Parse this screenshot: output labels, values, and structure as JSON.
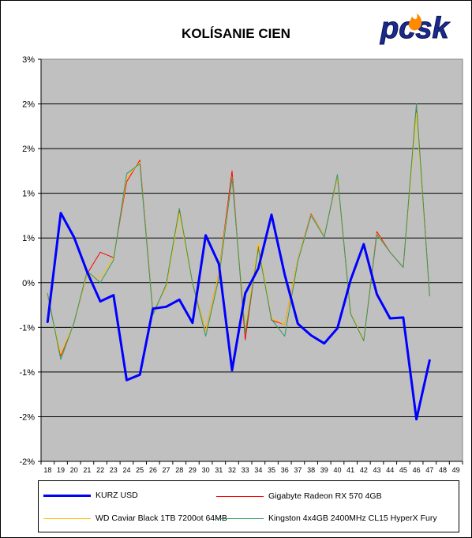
{
  "chart_data": {
    "type": "line",
    "title": "KOLÍSANIE CIEN",
    "logo_text": "pcsk",
    "x": [
      18,
      19,
      20,
      21,
      22,
      23,
      24,
      25,
      26,
      27,
      28,
      29,
      30,
      31,
      32,
      33,
      34,
      35,
      36,
      37,
      38,
      39,
      40,
      41,
      42,
      43,
      44,
      45,
      46,
      47,
      48,
      49
    ],
    "y_tick_labels": [
      "3%",
      "2%",
      "2%",
      "1%",
      "1%",
      "0%",
      "-1%",
      "-1%",
      "-2%",
      "-2%"
    ],
    "ylim": [
      -2.0,
      2.5
    ],
    "grid": "horizontal",
    "legend_position": "bottom",
    "series": [
      {
        "name": "KURZ USD",
        "color": "#0000ff",
        "width": 3,
        "values": [
          -0.44,
          0.78,
          0.51,
          0.12,
          -0.21,
          -0.14,
          -1.09,
          -1.03,
          -0.29,
          -0.27,
          -0.19,
          -0.45,
          0.53,
          0.21,
          -0.98,
          -0.12,
          0.16,
          0.76,
          0.09,
          -0.46,
          -0.59,
          -0.68,
          -0.51,
          0.03,
          0.43,
          -0.13,
          -0.4,
          -0.39,
          -1.53,
          -0.87,
          null,
          null
        ]
      },
      {
        "name": "Gigabyte Radeon RX 570 4GB",
        "color": "#ff0000",
        "width": 1,
        "values": [
          -0.15,
          -0.82,
          -0.45,
          0.1,
          0.34,
          0.28,
          1.13,
          1.37,
          -0.33,
          -0.05,
          0.81,
          -0.01,
          -0.54,
          0.11,
          1.25,
          -0.64,
          0.42,
          -0.42,
          -0.47,
          0.26,
          0.77,
          0.52,
          1.18,
          -0.34,
          -0.65,
          0.57,
          0.34,
          0.17,
          1.98,
          -0.14,
          null,
          null
        ]
      },
      {
        "name": "WD Caviar Black 1TB 7200ot 64MB",
        "color": "#ffc000",
        "width": 1,
        "values": [
          -0.15,
          -0.8,
          -0.45,
          0.1,
          0.05,
          0.28,
          1.17,
          1.35,
          -0.33,
          -0.05,
          0.78,
          -0.01,
          -0.54,
          0.11,
          1.18,
          -0.53,
          0.44,
          -0.4,
          -0.47,
          0.26,
          0.76,
          0.52,
          1.18,
          -0.34,
          -0.64,
          0.55,
          0.34,
          0.17,
          1.9,
          -0.14,
          null,
          null
        ]
      },
      {
        "name": "Kingston 4x4GB 2400MHz CL15 HyperX Fury",
        "color": "#339966",
        "width": 1,
        "values": [
          -0.12,
          -0.86,
          -0.45,
          0.13,
          0.0,
          0.25,
          1.22,
          1.33,
          -0.36,
          -0.02,
          0.83,
          0.0,
          -0.6,
          0.05,
          1.17,
          -0.57,
          0.38,
          -0.41,
          -0.6,
          0.24,
          0.75,
          0.51,
          1.21,
          -0.35,
          -0.65,
          0.54,
          0.34,
          0.17,
          2.0,
          -0.15,
          null,
          null
        ]
      }
    ]
  }
}
